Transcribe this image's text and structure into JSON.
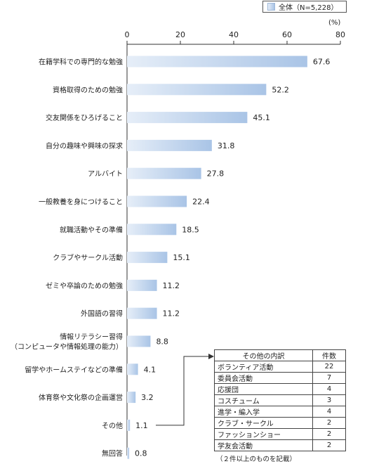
{
  "legend": {
    "label": "全体（N=5,228）"
  },
  "unit_label": "(%)",
  "chart_data": {
    "type": "bar",
    "orientation": "horizontal",
    "xlim": [
      0,
      80
    ],
    "ticks": [
      "0",
      "20",
      "40",
      "60",
      "80"
    ],
    "tick_values": [
      0,
      20,
      40,
      60,
      80
    ],
    "categories": [
      [
        "在籍学科での専門的な勉強"
      ],
      [
        "資格取得のための勉強"
      ],
      [
        "交友関係をひろげること"
      ],
      [
        "自分の趣味や興味の探求"
      ],
      [
        "アルバイト"
      ],
      [
        "一般教養を身につけること"
      ],
      [
        "就職活動やその準備"
      ],
      [
        "クラブやサークル活動"
      ],
      [
        "ゼミや卒論のための勉強"
      ],
      [
        "外国語の習得"
      ],
      [
        "情報リテラシー習得",
        "（コンピュータや情報処理の能力）"
      ],
      [
        "留学やホームステイなどの準備"
      ],
      [
        "体育祭や文化祭の企画運営"
      ],
      [
        "その他"
      ],
      [
        "無回答"
      ]
    ],
    "values": [
      67.6,
      52.2,
      45.1,
      31.8,
      27.8,
      22.4,
      18.5,
      15.1,
      11.2,
      11.2,
      8.8,
      4.1,
      3.2,
      1.1,
      0.8
    ],
    "value_labels": [
      "67.6",
      "52.2",
      "45.1",
      "31.8",
      "27.8",
      "22.4",
      "18.5",
      "15.1",
      "11.2",
      "11.2",
      "8.8",
      "4.1",
      "3.2",
      "1.1",
      "0.8"
    ],
    "series": [
      {
        "name": "全体（N=5,228）",
        "values": [
          67.6,
          52.2,
          45.1,
          31.8,
          27.8,
          22.4,
          18.5,
          15.1,
          11.2,
          11.2,
          8.8,
          4.1,
          3.2,
          1.1,
          0.8
        ]
      }
    ],
    "colors": {
      "bar_light": "#e6eef8",
      "bar_dark": "#a9c4e6",
      "axis": "#333333"
    }
  },
  "other_table": {
    "headers": [
      "その他の内訳",
      "件数"
    ],
    "rows": [
      [
        "ボランティア活動",
        "22"
      ],
      [
        "委員会活動",
        "7"
      ],
      [
        "応援団",
        "4"
      ],
      [
        "コスチューム",
        "3"
      ],
      [
        "進学・編入学",
        "4"
      ],
      [
        "クラブ・サークル",
        "2"
      ],
      [
        "ファッションショー",
        "2"
      ],
      [
        "学友会活動",
        "2"
      ]
    ]
  },
  "footnote": "（２件以上のものを記載）"
}
